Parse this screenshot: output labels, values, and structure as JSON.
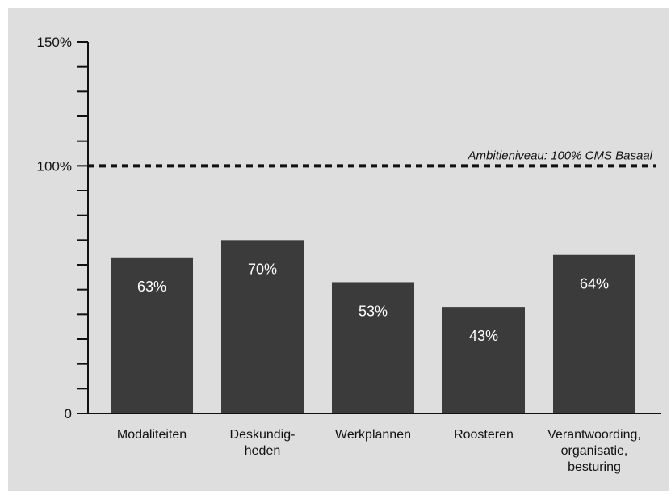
{
  "chart_data": {
    "type": "bar",
    "categories": [
      [
        "Modaliteiten"
      ],
      [
        "Deskundig-",
        "heden"
      ],
      [
        "Werkplannen"
      ],
      [
        "Roosteren"
      ],
      [
        "Verantwoording,",
        "organisatie,",
        "besturing"
      ]
    ],
    "values": [
      63,
      70,
      53,
      43,
      64
    ],
    "value_labels": [
      "63%",
      "70%",
      "53%",
      "43%",
      "64%"
    ],
    "ylim": [
      0,
      150
    ],
    "y_ticks": [
      {
        "value": 0,
        "label": "0"
      },
      {
        "value": 100,
        "label": "100%"
      },
      {
        "value": 150,
        "label": "150%"
      }
    ],
    "y_minor_step": 10,
    "reference_line": {
      "value": 100,
      "label": "Ambitieniveau: 100% CMS Basaal"
    },
    "grid": false,
    "colors": {
      "bar": "#3b3b3b",
      "axis": "#111111",
      "background": "#dedede",
      "bar_text": "#ffffff"
    }
  }
}
